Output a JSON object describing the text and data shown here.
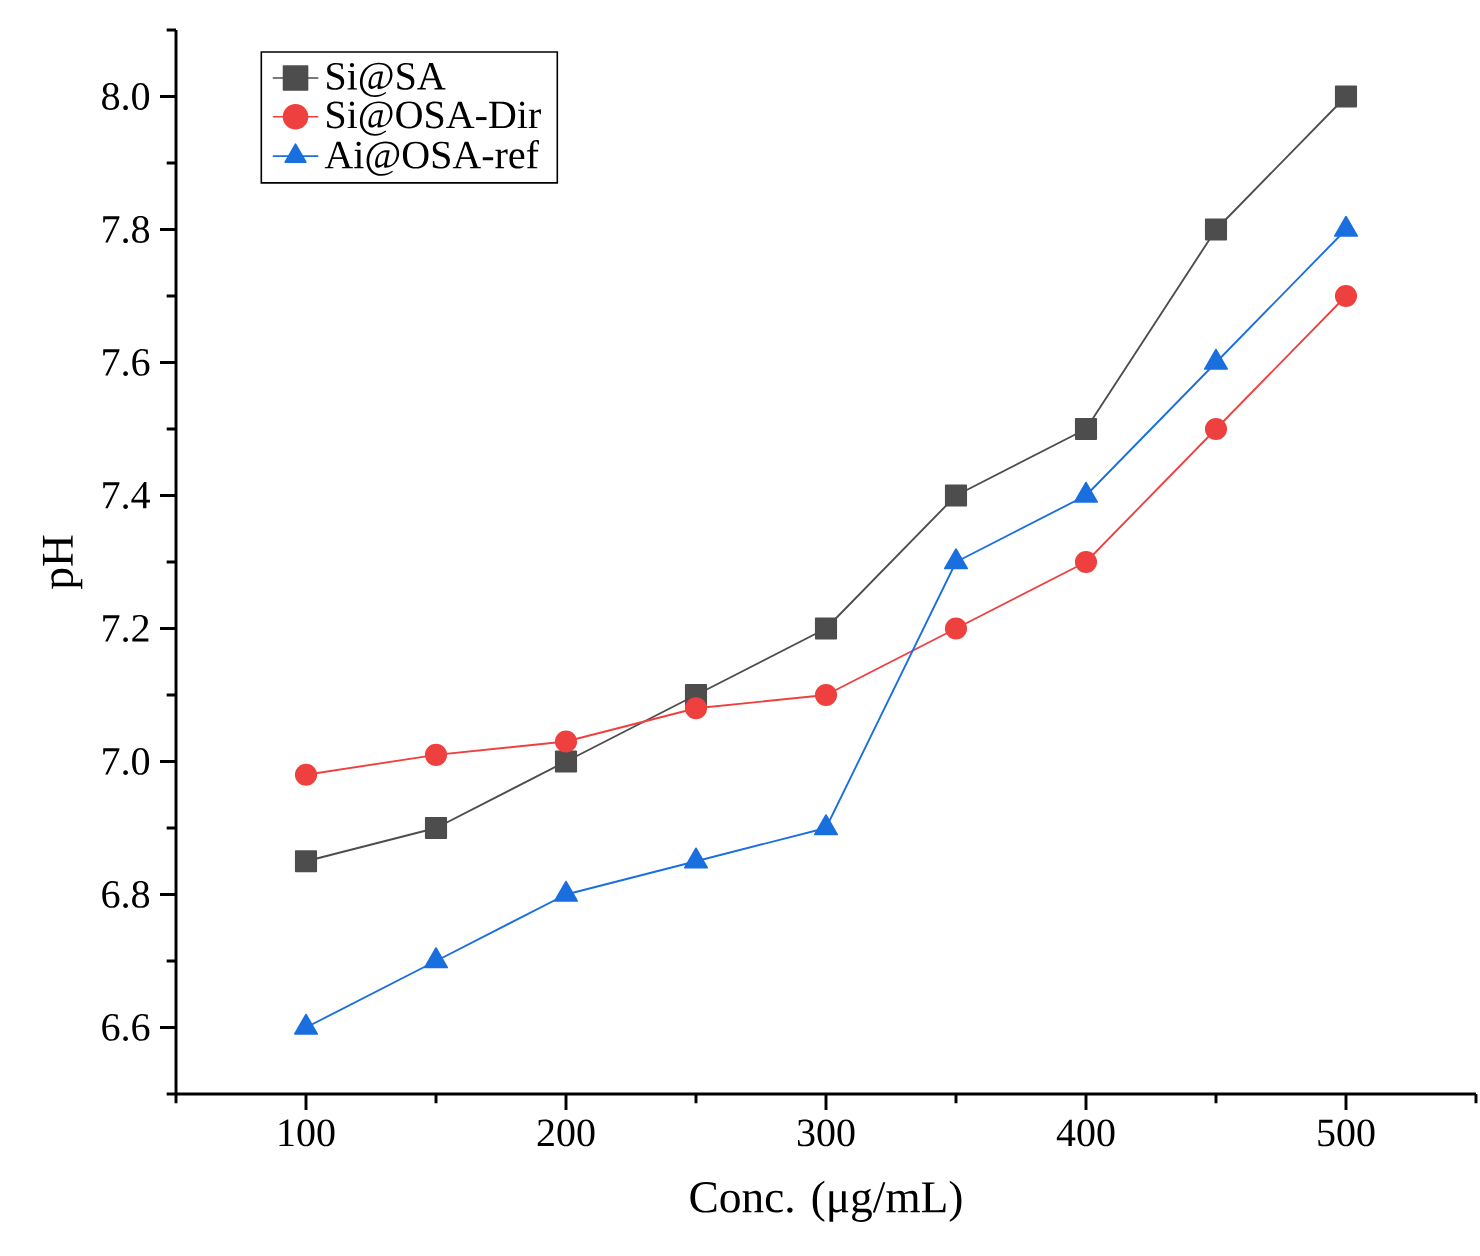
{
  "chart_data": {
    "type": "line",
    "xlabel": "Conc. (μg/mL)",
    "ylabel": "pH",
    "x": [
      100,
      150,
      200,
      250,
      300,
      350,
      400,
      450,
      500
    ],
    "series": [
      {
        "name": "Si@SA",
        "color": "#4d4d4d",
        "marker": "square",
        "values": [
          6.85,
          6.9,
          7.0,
          7.1,
          7.2,
          7.4,
          7.5,
          7.8,
          8.0
        ]
      },
      {
        "name": "Si@OSA-Dir",
        "color": "#ef4040",
        "marker": "circle",
        "values": [
          6.98,
          7.01,
          7.03,
          7.08,
          7.1,
          7.2,
          7.3,
          7.5,
          7.7
        ]
      },
      {
        "name": "Ai@OSA-ref",
        "color": "#1a6fdf",
        "marker": "triangle",
        "values": [
          6.6,
          6.7,
          6.8,
          6.85,
          6.9,
          7.3,
          7.4,
          7.6,
          7.8
        ]
      }
    ],
    "xlim": [
      50,
      550
    ],
    "xticks": [
      {
        "value": 50,
        "label": null
      },
      100,
      {
        "value": 150,
        "label": null
      },
      200,
      {
        "value": 250,
        "label": null
      },
      300,
      {
        "value": 350,
        "label": null
      },
      400,
      {
        "value": 450,
        "label": null
      },
      500,
      {
        "value": 550,
        "label": null
      }
    ],
    "ylim": [
      6.5,
      8.1
    ],
    "yticks": [
      {
        "value": 6.5,
        "label": null
      },
      6.6,
      {
        "value": 6.7,
        "label": null
      },
      6.8,
      {
        "value": 6.9,
        "label": null
      },
      {
        "value": 7.0,
        "label": "7.0"
      },
      {
        "value": 7.1,
        "label": null
      },
      7.2,
      {
        "value": 7.3,
        "label": null
      },
      7.4,
      {
        "value": 7.5,
        "label": null
      },
      7.6,
      {
        "value": 7.7,
        "label": null
      },
      7.8,
      {
        "value": 7.9,
        "label": null
      },
      {
        "value": 8.0,
        "label": "8.0"
      },
      {
        "value": 8.1,
        "label": null
      }
    ],
    "grid": false,
    "legend": "top left"
  }
}
